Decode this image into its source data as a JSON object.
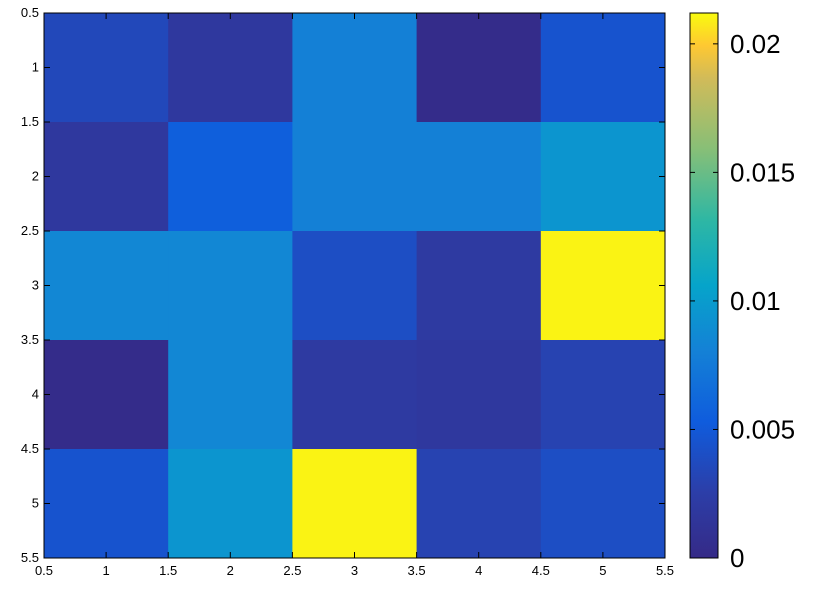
{
  "chart_data": {
    "type": "heatmap",
    "title": "",
    "xlabel": "",
    "ylabel": "",
    "xlim": [
      0.5,
      5.5
    ],
    "ylim": [
      0.5,
      5.5
    ],
    "y_direction": "reversed",
    "grid": false,
    "colormap": "parula",
    "x_ticks": [
      "0.5",
      "1",
      "1.5",
      "2",
      "2.5",
      "3",
      "3.5",
      "4",
      "4.5",
      "5",
      "5.5"
    ],
    "y_ticks": [
      "0.5",
      "1",
      "1.5",
      "2",
      "2.5",
      "3",
      "3.5",
      "4",
      "4.5",
      "5",
      "5.5"
    ],
    "rows": [
      1,
      2,
      3,
      4,
      5
    ],
    "columns": [
      1,
      2,
      3,
      4,
      5
    ],
    "values": [
      [
        0.0035,
        0.0018,
        0.008,
        0.0002,
        0.0045
      ],
      [
        0.0018,
        0.0055,
        0.008,
        0.008,
        0.0095
      ],
      [
        0.0085,
        0.0085,
        0.004,
        0.002,
        0.021
      ],
      [
        0.0002,
        0.0085,
        0.002,
        0.0018,
        0.003
      ],
      [
        0.0045,
        0.0095,
        0.021,
        0.003,
        0.004
      ]
    ],
    "colorbar": {
      "range": [
        0,
        0.0212
      ],
      "ticks": [
        {
          "value": 0,
          "label": "0"
        },
        {
          "value": 0.005,
          "label": "0.005"
        },
        {
          "value": 0.01,
          "label": "0.01"
        },
        {
          "value": 0.015,
          "label": "0.015"
        },
        {
          "value": 0.02,
          "label": "0.02"
        }
      ]
    }
  }
}
